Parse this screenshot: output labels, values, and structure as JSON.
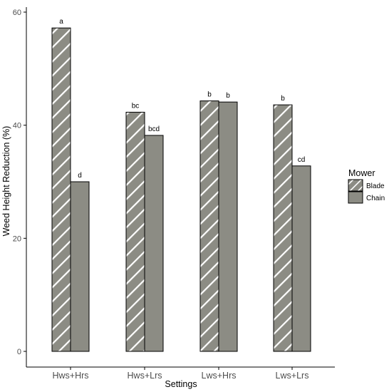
{
  "chart_data": {
    "type": "bar",
    "xlabel": "Settings",
    "ylabel": "Weed Height Reduction (%)",
    "ylim": [
      0,
      60
    ],
    "yticks": [
      0,
      20,
      40,
      60
    ],
    "categories": [
      "Hws+Hrs",
      "Hws+Lrs",
      "Lws+Hrs",
      "Lws+Lrs"
    ],
    "series": [
      {
        "name": "Blade",
        "values": [
          57.2,
          42.3,
          44.3,
          43.6
        ],
        "labels": [
          "a",
          "bc",
          "b",
          "b"
        ],
        "pattern": "diagonal-stripes"
      },
      {
        "name": "Chain",
        "values": [
          30.0,
          38.2,
          44.1,
          32.8
        ],
        "labels": [
          "d",
          "bcd",
          "b",
          "cd"
        ],
        "pattern": "solid"
      }
    ],
    "legend": {
      "title": "Mower",
      "position": "right"
    },
    "grid": false,
    "colors": {
      "bar_fill": "#8c8c84",
      "stripe": "#ffffff",
      "bar_stroke": "#000000",
      "axis": "#000000"
    }
  }
}
